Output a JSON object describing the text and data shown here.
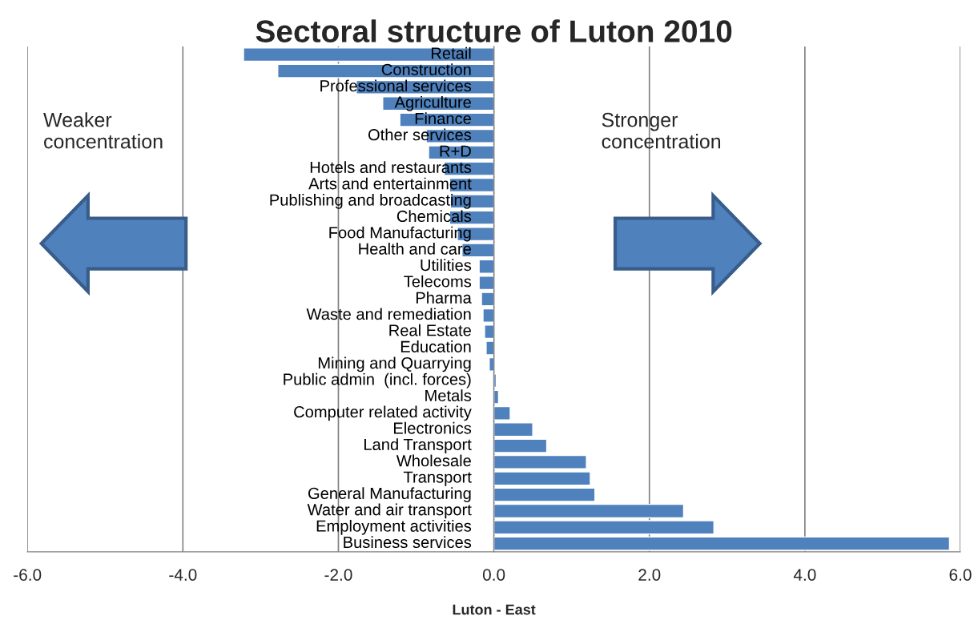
{
  "chart_data": {
    "type": "bar",
    "orientation": "horizontal",
    "title": "Sectoral structure of Luton 2010",
    "xlabel": "Luton - East",
    "categories": [
      "Retail",
      "Construction",
      "Professional services",
      "Agriculture",
      "Finance",
      "Other services",
      "R+D",
      "Hotels and restaurants",
      "Arts and entertainment",
      "Publishing and broadcasting",
      "Chemicals",
      "Food Manufacturing",
      "Health and care",
      "Utilities",
      "Telecoms",
      "Pharma",
      "Waste and remediation",
      "Real Estate",
      "Education",
      "Mining and Quarrying",
      "Public admin  (incl. forces)",
      "Metals",
      "Computer related activity",
      "Electronics",
      "Land Transport",
      "Wholesale",
      "Transport",
      "General Manufacturing",
      "Water and air transport",
      "Employment activities",
      "Business services"
    ],
    "values": [
      -3.22,
      -2.78,
      -1.77,
      -1.43,
      -1.21,
      -0.87,
      -0.84,
      -0.64,
      -0.57,
      -0.56,
      -0.57,
      -0.47,
      -0.41,
      -0.19,
      -0.19,
      -0.16,
      -0.14,
      -0.12,
      -0.1,
      -0.06,
      0.03,
      0.06,
      0.21,
      0.5,
      0.68,
      1.19,
      1.24,
      1.3,
      2.44,
      2.83,
      5.86
    ],
    "color": "#4f81bd",
    "xlim": [
      -6,
      6
    ],
    "xticks": [
      {
        "value": -6,
        "label": "-6.0"
      },
      {
        "value": -4,
        "label": "-4.0"
      },
      {
        "value": -2,
        "label": "-2.0"
      },
      {
        "value": 0,
        "label": "0.0"
      },
      {
        "value": 2,
        "label": "2.0"
      },
      {
        "value": 4,
        "label": "4.0"
      },
      {
        "value": 6,
        "label": "6.0"
      }
    ],
    "grid": "x",
    "annotations": [
      "Weaker\nconcentration",
      "Stronger\nconcentration"
    ]
  }
}
